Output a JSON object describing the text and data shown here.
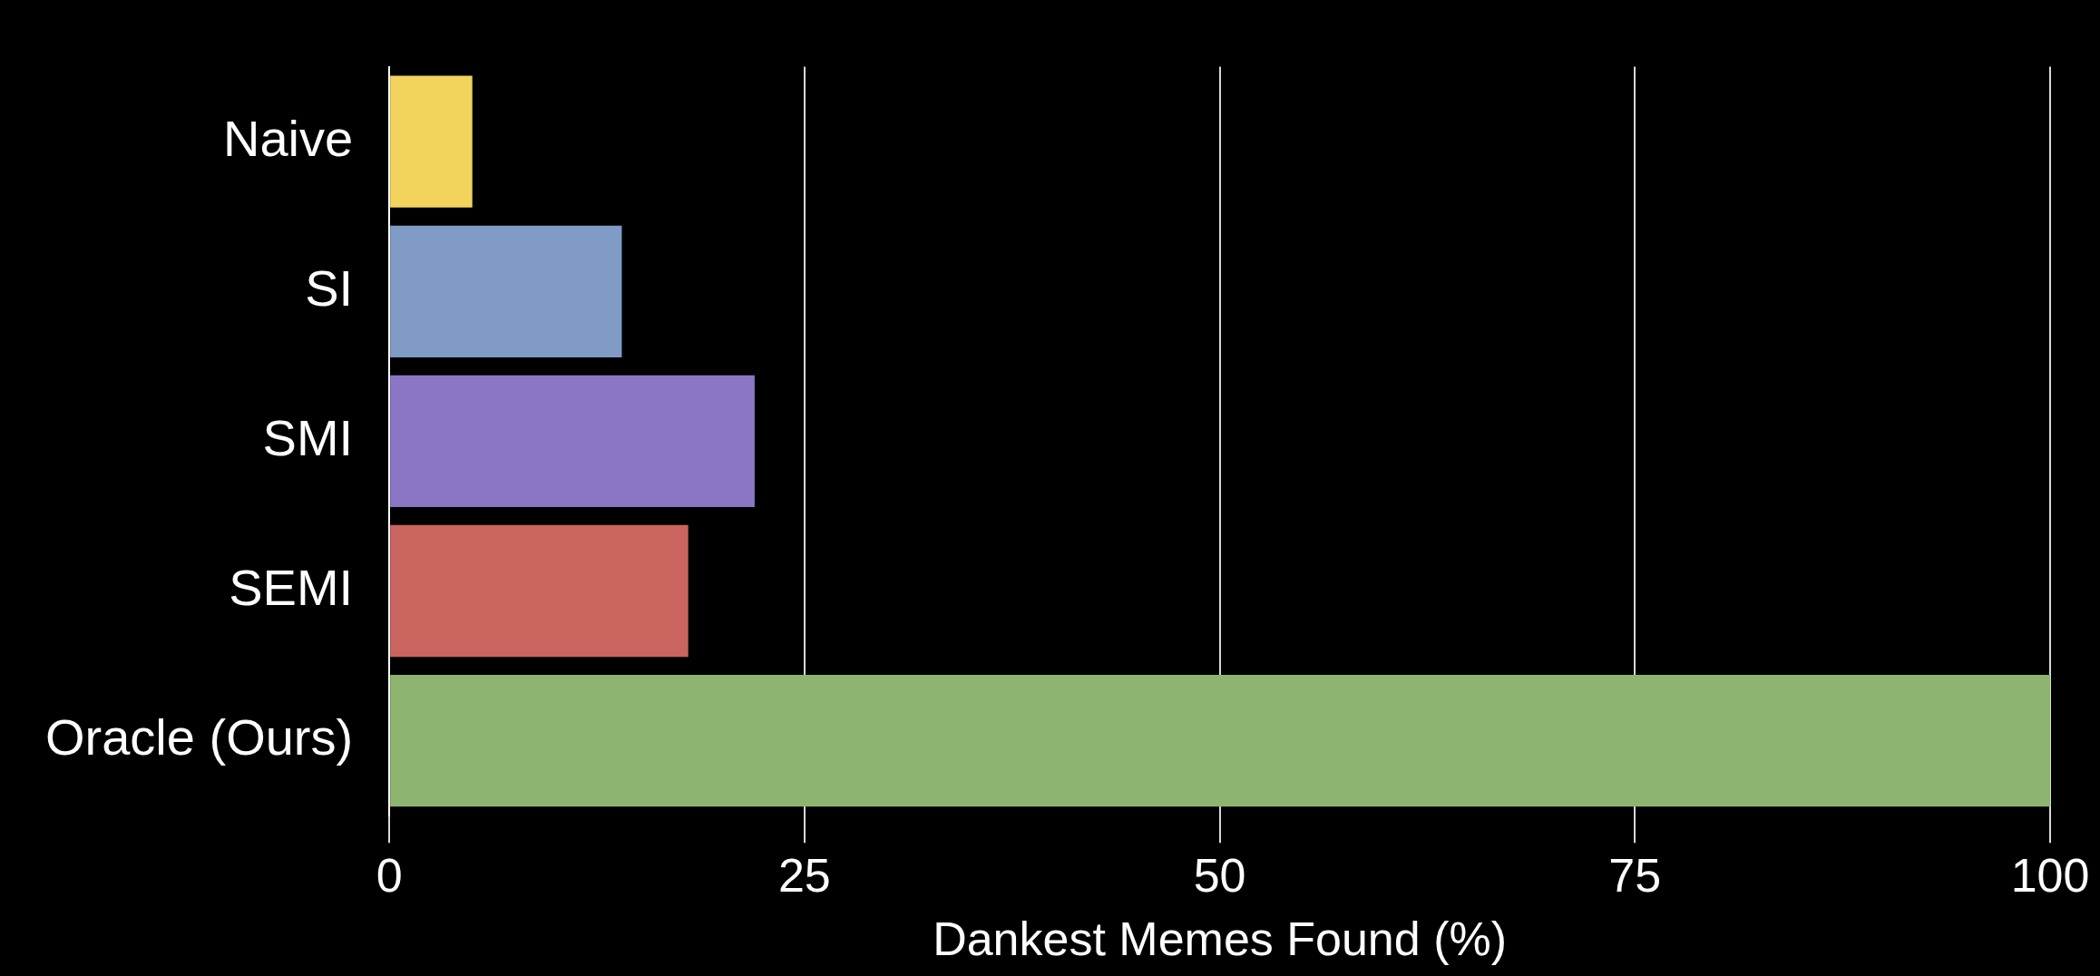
{
  "chart_data": {
    "type": "bar",
    "orientation": "horizontal",
    "xlabel": "Dankest Memes Found (%)",
    "categories": [
      "Naive",
      "SI",
      "SMI",
      "SEMI",
      "Oracle (Ours)"
    ],
    "values": [
      5,
      14,
      22,
      18,
      100
    ],
    "colors": [
      "#f2d35e",
      "#7f9bc6",
      "#8a76c4",
      "#c9645e",
      "#8db56f"
    ],
    "xlim": [
      0,
      100
    ],
    "xticks": [
      0,
      25,
      50,
      75,
      100
    ],
    "grid": "x",
    "legend": false
  }
}
